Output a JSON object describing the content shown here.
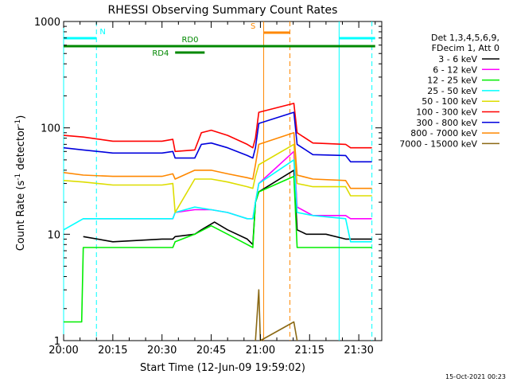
{
  "chart_data": {
    "type": "line",
    "title": "RHESSI Observing Summary Count Rates",
    "xlabel": "Start Time (12-Jun-09 19:59:02)",
    "ylabel_main": "Count Rate (s",
    "ylabel_sup1": "-1",
    "ylabel_mid": " detector",
    "ylabel_sup2": "-1",
    "ylabel_end": ")",
    "yscale": "log",
    "ylim": [
      1,
      1000
    ],
    "xlim_minutes": [
      0,
      97
    ],
    "x_ticks": [
      {
        "minutes": 0,
        "label": "20:00"
      },
      {
        "minutes": 15,
        "label": "20:15"
      },
      {
        "minutes": 30,
        "label": "20:30"
      },
      {
        "minutes": 45,
        "label": "20:45"
      },
      {
        "minutes": 60,
        "label": "21:00"
      },
      {
        "minutes": 75,
        "label": "21:15"
      },
      {
        "minutes": 90,
        "label": "21:30"
      }
    ],
    "y_ticks": [
      {
        "value": 1,
        "label": "1"
      },
      {
        "value": 10,
        "label": "10"
      },
      {
        "value": 100,
        "label": "100"
      },
      {
        "value": 1000,
        "label": "1000"
      }
    ],
    "legend_header": [
      "Det 1,3,4,5,6,9,",
      "FDecim 1, Att 0"
    ],
    "series": [
      {
        "name": "3 - 6 keV",
        "color": "#000000",
        "x": [
          6,
          15,
          30,
          33.3,
          34,
          40,
          42,
          46,
          50,
          56,
          57.7,
          58.5,
          59.5,
          70.2,
          71.2,
          74,
          80,
          86,
          87.5,
          94
        ],
        "y": [
          9.5,
          8.5,
          9,
          9,
          9.5,
          10,
          11,
          13,
          11,
          9,
          8,
          20,
          25,
          40,
          11,
          10,
          10,
          9,
          9,
          9
        ]
      },
      {
        "name": "6 - 12 keV",
        "color": "#ff00ff",
        "x": [
          6,
          15,
          30,
          33.3,
          34,
          40,
          45,
          50,
          56,
          57.7,
          58.5,
          59.5,
          70.2,
          71.2,
          76,
          86,
          87.5,
          94
        ],
        "y": [
          14,
          14,
          14,
          14,
          16,
          17,
          17,
          16,
          14,
          14,
          20,
          30,
          60,
          18,
          15,
          15,
          14,
          14
        ]
      },
      {
        "name": "12 - 25 keV",
        "color": "#00ee00",
        "x": [
          0,
          5.5,
          6,
          15,
          30,
          33.3,
          34,
          40,
          45,
          50,
          56,
          57.7,
          58.5,
          59.5,
          70.2,
          71.2,
          76,
          86,
          87.5,
          94
        ],
        "y": [
          1.5,
          1.5,
          7.5,
          7.5,
          7.5,
          7.5,
          8.5,
          10,
          12,
          10,
          8,
          7.5,
          20,
          25,
          35,
          7.5,
          7.5,
          7.5,
          7.5,
          7.5
        ]
      },
      {
        "name": "25 - 50 keV",
        "color": "#00ffff",
        "x": [
          0,
          6,
          15,
          30,
          33.3,
          34,
          40,
          45,
          50,
          56,
          57.7,
          58.5,
          59.5,
          70.2,
          71.2,
          76,
          86,
          87.5,
          94
        ],
        "y": [
          11,
          14,
          14,
          14,
          14,
          16,
          18,
          17,
          16,
          14,
          14,
          20,
          30,
          50,
          16,
          15,
          14,
          8.5,
          8.5
        ]
      },
      {
        "name": "50 - 100 keV",
        "color": "#dddd00",
        "x": [
          0,
          6,
          15,
          30,
          33.3,
          34,
          40,
          45,
          50,
          56,
          57.7,
          58.5,
          59.5,
          70.2,
          71.2,
          76,
          86,
          87.5,
          94
        ],
        "y": [
          32,
          31,
          29,
          29,
          30,
          16,
          33,
          33,
          31,
          28,
          27,
          35,
          45,
          70,
          30,
          28,
          28,
          23,
          23
        ]
      },
      {
        "name": "100 - 300 keV",
        "color": "#ff0000",
        "x": [
          0,
          6,
          15,
          30,
          33.3,
          34,
          40,
          42,
          45,
          50,
          56,
          57.7,
          58.5,
          59.5,
          70.2,
          71.2,
          76,
          86,
          87.5,
          94
        ],
        "y": [
          85,
          82,
          75,
          75,
          78,
          60,
          62,
          90,
          95,
          85,
          70,
          65,
          80,
          140,
          170,
          90,
          72,
          70,
          65,
          65
        ]
      },
      {
        "name": "300 - 800 keV",
        "color": "#0000dd",
        "x": [
          0,
          6,
          15,
          30,
          33.3,
          34,
          40,
          42,
          45,
          50,
          56,
          57.7,
          58.5,
          59.5,
          70.2,
          71.2,
          76,
          86,
          87.5,
          94
        ],
        "y": [
          65,
          62,
          58,
          58,
          60,
          52,
          52,
          70,
          72,
          65,
          55,
          52,
          65,
          110,
          140,
          70,
          56,
          55,
          48,
          48
        ]
      },
      {
        "name": "800 - 7000 keV",
        "color": "#ff8800",
        "x": [
          0,
          6,
          15,
          30,
          33.3,
          34,
          40,
          45,
          50,
          56,
          57.7,
          58.5,
          59.5,
          70.2,
          71.2,
          76,
          86,
          87.5,
          94
        ],
        "y": [
          38,
          36,
          35,
          35,
          37,
          33,
          40,
          40,
          37,
          34,
          33,
          45,
          70,
          90,
          36,
          33,
          32,
          27,
          27
        ]
      },
      {
        "name": "7000 - 15000 keV",
        "color": "#8b6914",
        "x": [
          58.5,
          59.5,
          60,
          70.2,
          71.2
        ],
        "y": [
          1,
          3,
          1,
          1.5,
          1
        ]
      }
    ],
    "annotations": {
      "top_bars": [
        {
          "label": "N",
          "color": "#00ffff",
          "x_start": 0,
          "x_end": 10,
          "label_x": 11,
          "level": "top"
        },
        {
          "label": "",
          "color": "#00ffff",
          "x_start": 84,
          "x_end": 95,
          "label_x": 0,
          "level": "top"
        },
        {
          "label": "S",
          "color": "#ff8800",
          "x_start": 61,
          "x_end": 69,
          "label_x": 57,
          "level": "upper"
        },
        {
          "label": "RD0",
          "color": "#008800",
          "x_start": 0,
          "x_end": 95,
          "label_x": 36,
          "level": "middle"
        },
        {
          "label": "RD4",
          "color": "#008800",
          "x_start": 34,
          "x_end": 43,
          "label_x": 27,
          "level": "lower"
        }
      ],
      "vlines": [
        {
          "x": 0,
          "color": "#00ffff",
          "style": "solid"
        },
        {
          "x": 10,
          "color": "#00ffff",
          "style": "dashed"
        },
        {
          "x": 84,
          "color": "#00ffff",
          "style": "solid"
        },
        {
          "x": 94,
          "color": "#00ffff",
          "style": "dashed"
        },
        {
          "x": 61,
          "color": "#ff8800",
          "style": "solid"
        },
        {
          "x": 69,
          "color": "#ff8800",
          "style": "dashed"
        }
      ]
    },
    "timestamp": "15-Oct-2021 00:23"
  }
}
